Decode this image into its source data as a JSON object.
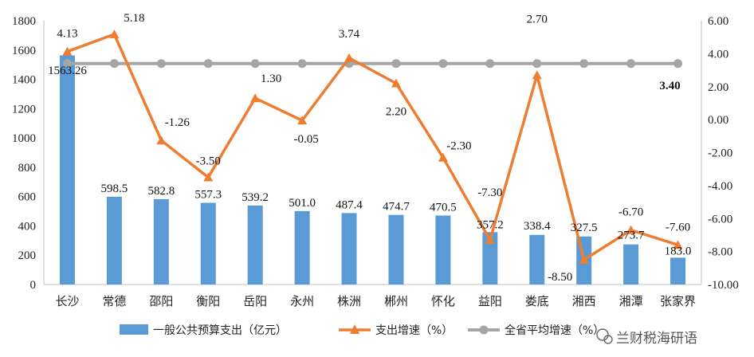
{
  "chart_data": {
    "type": "bar",
    "categories": [
      "长沙",
      "常德",
      "邵阳",
      "衡阳",
      "岳阳",
      "永州",
      "株洲",
      "郴州",
      "怀化",
      "益阳",
      "娄底",
      "湘西",
      "湘潭",
      "张家界"
    ],
    "series": [
      {
        "name": "一般公共预算支出（亿元）",
        "type": "bar",
        "axis": "left",
        "color": "#5B9BD5",
        "values": [
          1563.26,
          598.5,
          582.8,
          557.3,
          539.2,
          501.0,
          487.4,
          474.7,
          470.5,
          357.2,
          338.4,
          327.5,
          273.7,
          183.0
        ],
        "labels": [
          "1563.26",
          "598.5",
          "582.8",
          "557.3",
          "539.2",
          "501.0",
          "487.4",
          "474.7",
          "470.5",
          "357.2",
          "338.4",
          "327.5",
          "273.7",
          "183.0"
        ]
      },
      {
        "name": "支出增速（%）",
        "type": "line",
        "axis": "right",
        "color": "#ED7D31",
        "values": [
          4.13,
          5.18,
          -1.26,
          -3.5,
          1.3,
          -0.05,
          3.74,
          2.2,
          -2.3,
          -7.3,
          2.7,
          -8.5,
          -6.7,
          -7.6
        ],
        "labels": [
          "4.13",
          "5.18",
          "-1.26",
          "-3.50",
          "1.30",
          "-0.05",
          "3.74",
          "2.20",
          "-2.30",
          "-7.30",
          "2.70",
          "-8.50",
          "-6.70",
          "-7.60"
        ]
      },
      {
        "name": "全省平均增速（%）",
        "type": "line",
        "axis": "right",
        "color": "#A5A5A5",
        "values": [
          3.4,
          3.4,
          3.4,
          3.4,
          3.4,
          3.4,
          3.4,
          3.4,
          3.4,
          3.4,
          3.4,
          3.4,
          3.4,
          3.4
        ],
        "label": "3.40",
        "label_color": "#E00000"
      }
    ],
    "y_left": {
      "lim": [
        0,
        1800
      ],
      "ticks": [
        "0",
        "200",
        "400",
        "600",
        "800",
        "1000",
        "1200",
        "1400",
        "1600",
        "1800"
      ]
    },
    "y_right": {
      "lim": [
        -10,
        6
      ],
      "ticks": [
        "-10.00",
        "-8.00",
        "-6.00",
        "-4.00",
        "-2.00",
        "0.00",
        "2.00",
        "4.00",
        "6.00"
      ]
    },
    "legend_position": "bottom",
    "grid": false
  },
  "watermark": "兰财税海研语"
}
